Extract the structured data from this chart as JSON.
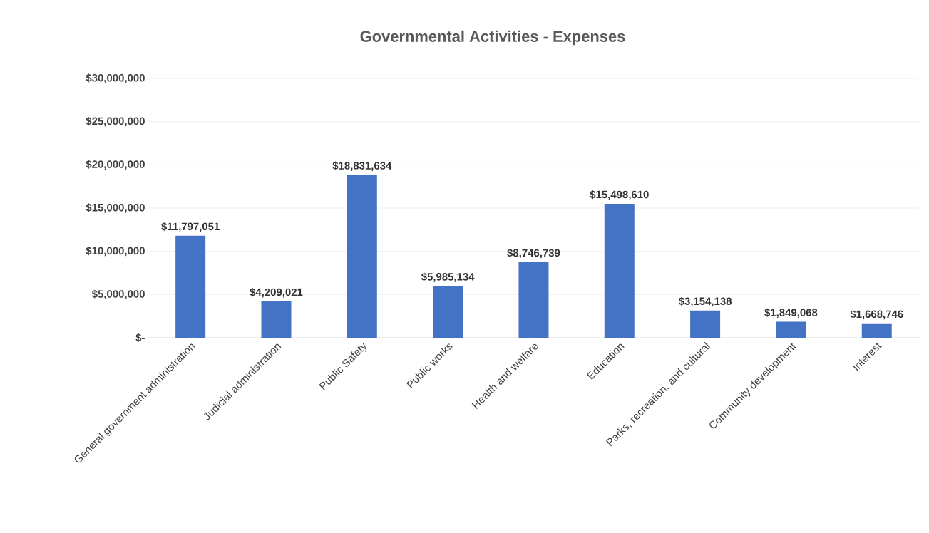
{
  "chart_data": {
    "type": "bar",
    "title": "Governmental Activities - Expenses",
    "categories": [
      "General government administration",
      "Judicial administration",
      "Public Safety",
      "Public works",
      "Health and welfare",
      "Education",
      "Parks, recreation, and cultural",
      "Community development",
      "Interest"
    ],
    "values": [
      11797051,
      4209021,
      18831634,
      5985134,
      8746739,
      15498610,
      3154138,
      1849068,
      1668746
    ],
    "value_labels": [
      "$11,797,051",
      "$4,209,021",
      "$18,831,634",
      "$5,985,134",
      "$8,746,739",
      "$15,498,610",
      "$3,154,138",
      "$1,849,068",
      "$1,668,746"
    ],
    "color": "#4472c4",
    "ylim": [
      0,
      30000000
    ],
    "yticks": [
      {
        "value": 0,
        "label": "$-"
      },
      {
        "value": 5000000,
        "label": "$5,000,000"
      },
      {
        "value": 10000000,
        "label": "$10,000,000"
      },
      {
        "value": 15000000,
        "label": "$15,000,000"
      },
      {
        "value": 20000000,
        "label": "$20,000,000"
      },
      {
        "value": 25000000,
        "label": "$25,000,000"
      },
      {
        "value": 30000000,
        "label": "$30,000,000"
      }
    ],
    "grid": "y"
  }
}
